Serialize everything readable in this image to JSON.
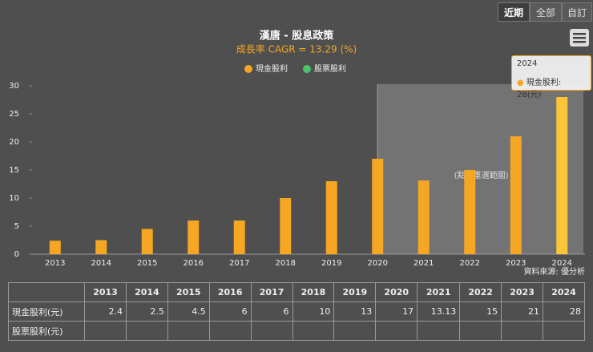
{
  "buttons": [
    "近期",
    "全部",
    "自訂"
  ],
  "tooltip": {
    "title": "2024",
    "label": "現金股利: 28(元)"
  },
  "chart_data": {
    "type": "bar",
    "title": "漢唐 - 股息政策",
    "subtitle": "成長率 CAGR = 13.29 (%)",
    "categories": [
      "2013",
      "2014",
      "2015",
      "2016",
      "2017",
      "2018",
      "2019",
      "2020",
      "2021",
      "2022",
      "2023",
      "2024"
    ],
    "series": [
      {
        "name": "現金股利",
        "color": "#f5a623",
        "values": [
          2.4,
          2.5,
          4.5,
          6,
          6,
          10,
          13,
          17,
          13.13,
          15,
          21,
          28
        ]
      },
      {
        "name": "股票股利",
        "color": "#4cc46a",
        "values": [
          null,
          null,
          null,
          null,
          null,
          null,
          null,
          null,
          null,
          null,
          null,
          null
        ]
      }
    ],
    "ylim": [
      0,
      30
    ],
    "yticks": [
      0,
      5,
      10,
      15,
      20,
      25,
      30
    ],
    "grid": false,
    "highlight_from": "2020",
    "highlight_label": "(點擊重選範圍)",
    "source": "資料來源: 優分析"
  },
  "table": {
    "row_labels": [
      "現金股利(元)",
      "股票股利(元)"
    ]
  }
}
